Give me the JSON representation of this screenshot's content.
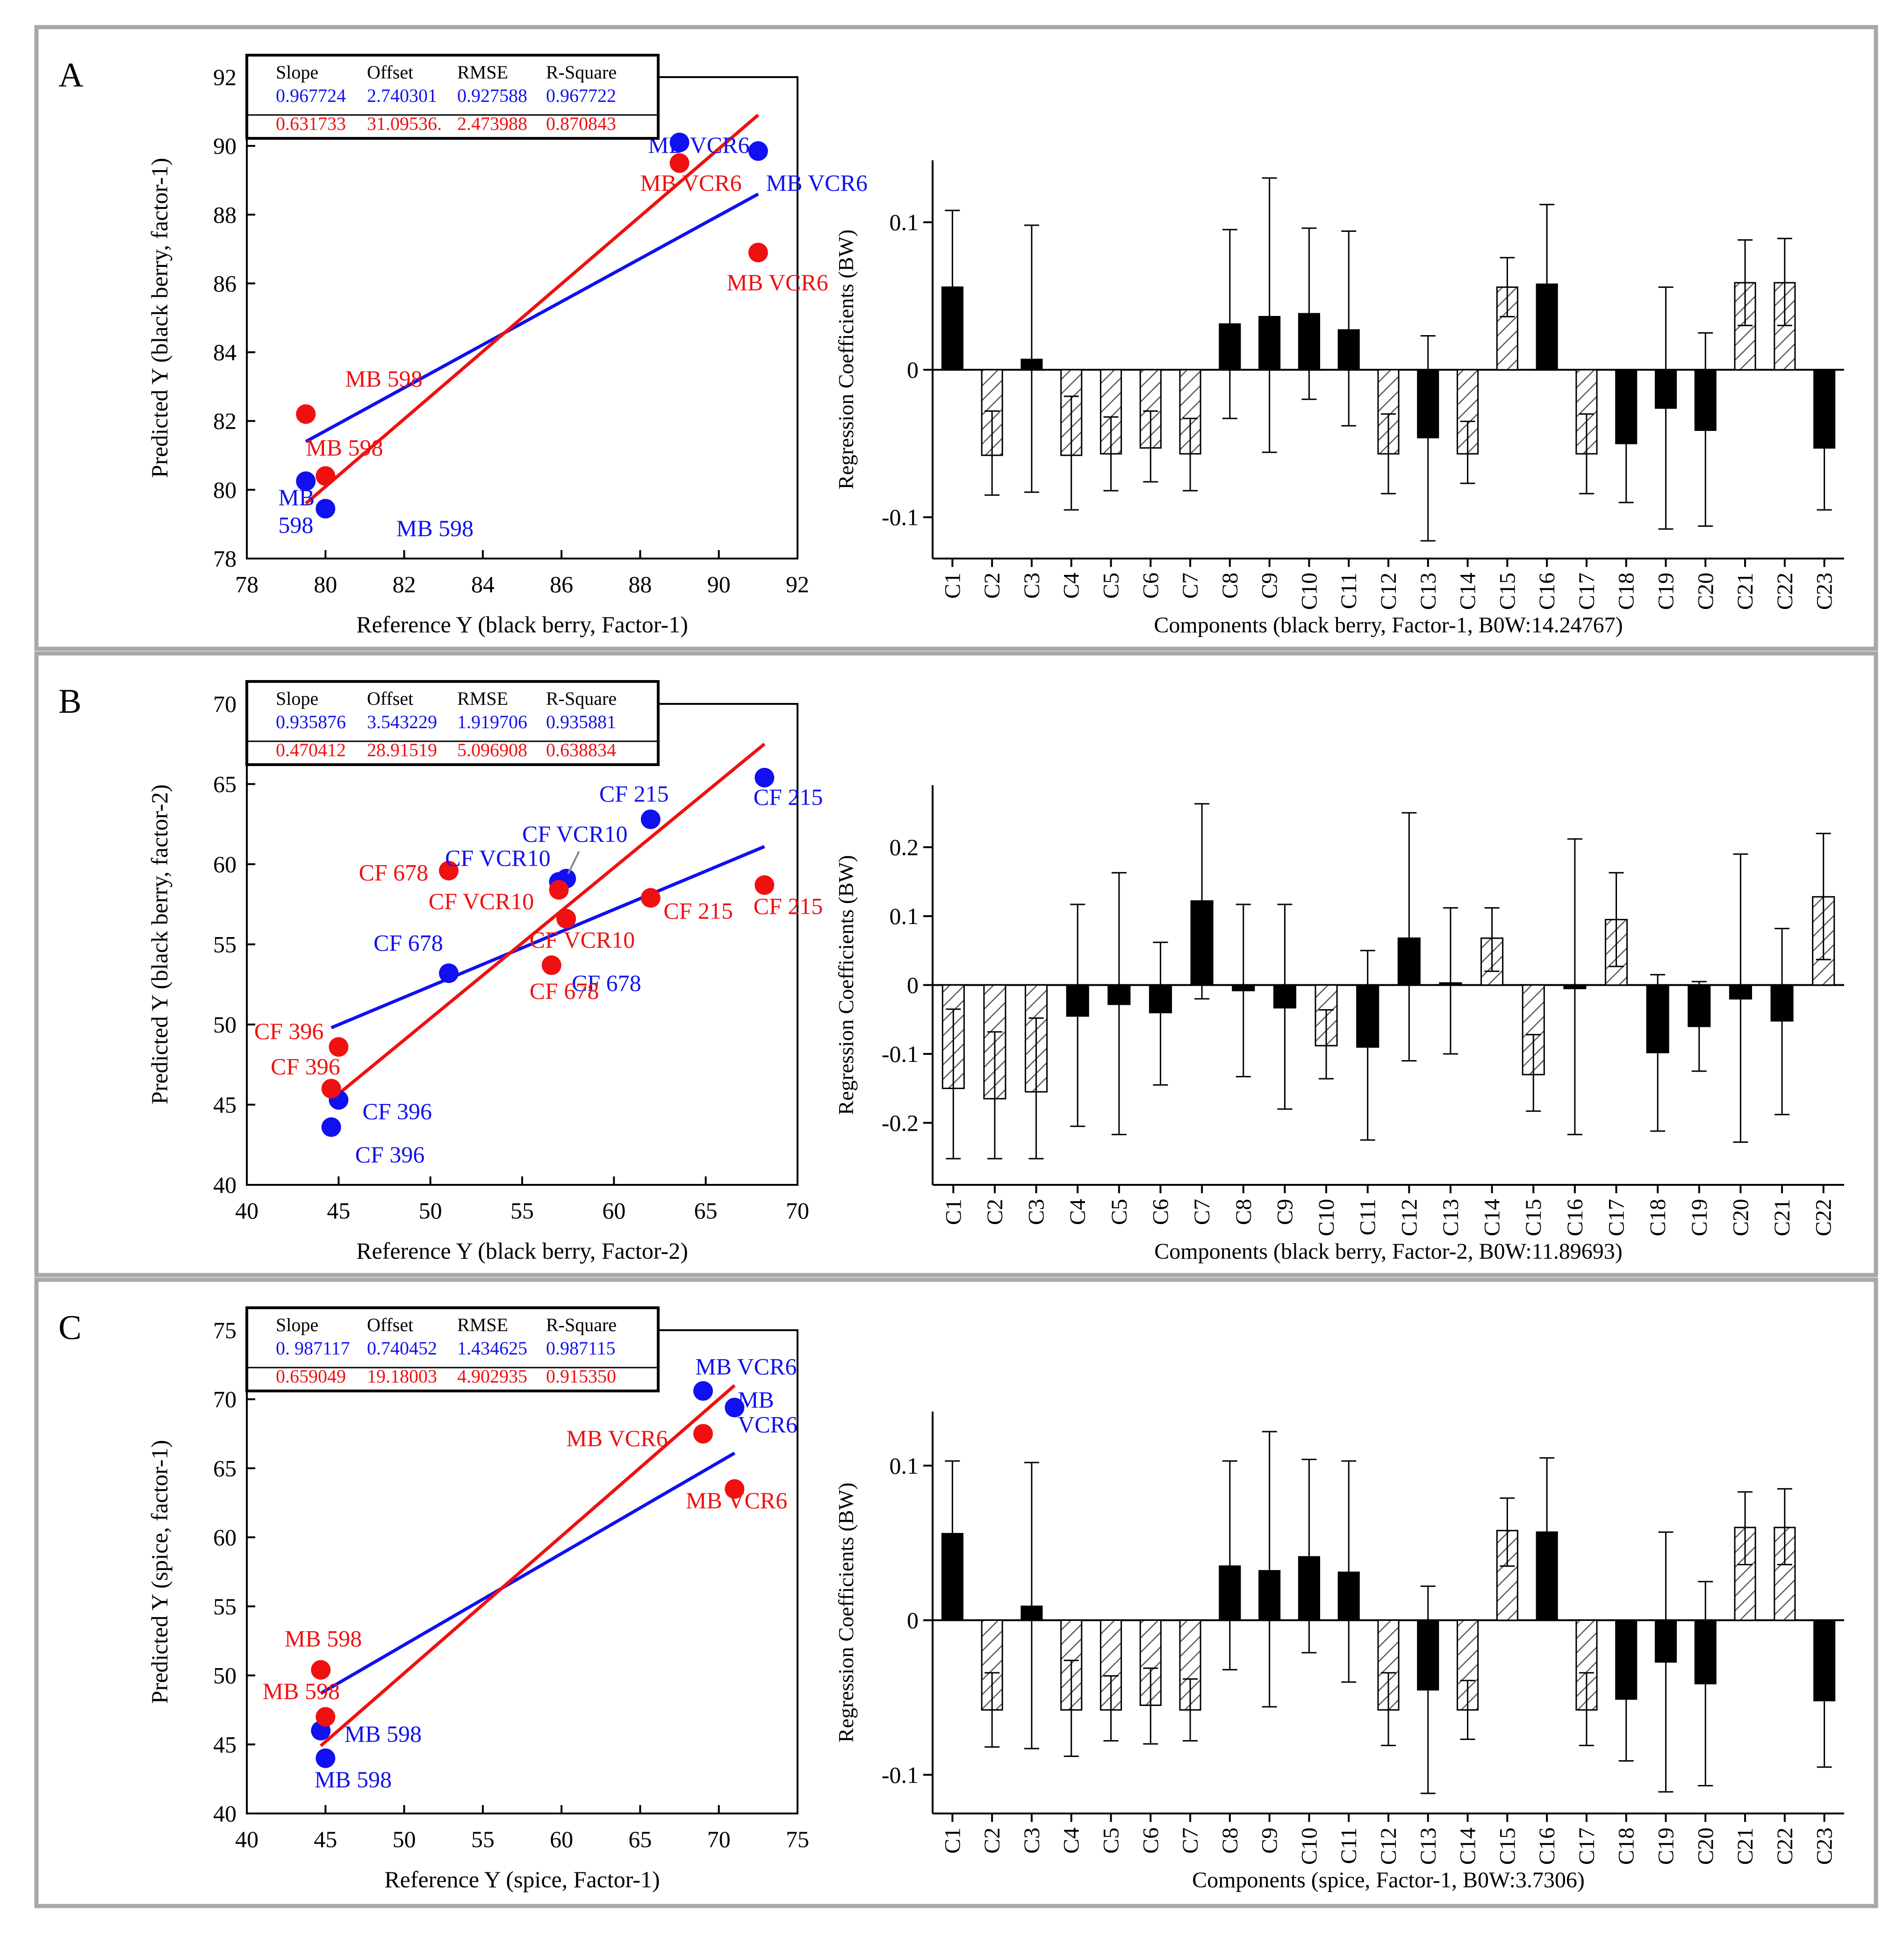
{
  "colors": {
    "blue": "#1010f0",
    "red": "#f01010",
    "frame": "#a8a8a8",
    "axis": "#000000"
  },
  "stats_header": [
    "Slope",
    "Offset",
    "RMSE",
    "R-Square"
  ],
  "chart_data": [
    {
      "panel": "A",
      "type": "scatter",
      "xlabel": "Reference Y (black berry, Factor-1)",
      "ylabel": "Predicted Y (black berry, factor-1)",
      "xlim": [
        78,
        92
      ],
      "ylim": [
        78,
        92
      ],
      "xticks": [
        78,
        80,
        82,
        84,
        86,
        88,
        90,
        92
      ],
      "yticks": [
        78,
        80,
        82,
        84,
        86,
        88,
        90,
        92
      ],
      "stats": {
        "blue": [
          "0.967724",
          "2.740301",
          "0.927588",
          "0.967722"
        ],
        "red": [
          "0.631733",
          "31.09536.",
          "2.473988",
          "0.870843"
        ]
      },
      "series": [
        {
          "name": "blue",
          "points": [
            [
              79.5,
              80.25
            ],
            [
              80.0,
              79.45
            ],
            [
              89.0,
              90.1
            ],
            [
              91.0,
              89.85
            ]
          ],
          "fit": [
            [
              79.5,
              81.4
            ],
            [
              91.0,
              88.6
            ]
          ]
        },
        {
          "name": "red",
          "points": [
            [
              79.5,
              82.2
            ],
            [
              80.0,
              80.4
            ],
            [
              89.0,
              89.5
            ],
            [
              91.0,
              86.9
            ]
          ],
          "fit": [
            [
              79.5,
              79.6
            ],
            [
              91.0,
              90.9
            ]
          ]
        }
      ],
      "labels": [
        {
          "text": "MB VCR6",
          "color": "blue",
          "x": 88.2,
          "y": 89.8
        },
        {
          "text": "MB VCR6",
          "color": "blue",
          "x": 91.2,
          "y": 88.7
        },
        {
          "text": "MB VCR6",
          "color": "red",
          "x": 88.0,
          "y": 88.7
        },
        {
          "text": "MB VCR6",
          "color": "red",
          "x": 90.2,
          "y": 85.8
        },
        {
          "text": "MB 598",
          "color": "red",
          "x": 80.5,
          "y": 83.0
        },
        {
          "text": "MB 598",
          "color": "red",
          "x": 79.5,
          "y": 81.0
        },
        {
          "text": "MB",
          "color": "blue",
          "x": 78.8,
          "y": 79.55
        },
        {
          "text": "598",
          "color": "blue",
          "x": 78.8,
          "y": 78.75
        },
        {
          "text": "MB 598",
          "color": "blue",
          "x": 81.8,
          "y": 78.65
        }
      ]
    },
    {
      "panel": "A",
      "type": "bar",
      "xlabel": "Components (black berry, Factor-1, B0W:14.24767)",
      "ylabel": "Regression Coefficients (BW)",
      "ylim": [
        -0.128,
        0.142
      ],
      "yticks": [
        -0.1,
        0,
        0.1
      ],
      "categories": [
        "C1",
        "C2",
        "C3",
        "C4",
        "C5",
        "C6",
        "C7",
        "C8",
        "C9",
        "C10",
        "C11",
        "C12",
        "C13",
        "C14",
        "C15",
        "C16",
        "C17",
        "C18",
        "C19",
        "C20",
        "C21",
        "C22",
        "C23"
      ],
      "values": [
        0.056,
        -0.058,
        0.007,
        -0.058,
        -0.057,
        -0.053,
        -0.057,
        0.031,
        0.036,
        0.038,
        0.027,
        -0.057,
        -0.046,
        -0.057,
        0.056,
        0.058,
        -0.057,
        -0.05,
        -0.026,
        -0.041,
        0.059,
        0.059,
        -0.053
      ],
      "err_hi": [
        0.108,
        -0.028,
        0.098,
        -0.018,
        -0.032,
        -0.028,
        -0.033,
        0.095,
        0.13,
        0.096,
        0.094,
        -0.03,
        0.023,
        -0.035,
        0.076,
        0.112,
        -0.03,
        -0.01,
        0.056,
        0.025,
        0.088,
        0.089,
        -0.008
      ],
      "err_lo": [
        0.003,
        -0.085,
        -0.083,
        -0.095,
        -0.082,
        -0.076,
        -0.082,
        -0.033,
        -0.056,
        -0.02,
        -0.038,
        -0.084,
        -0.116,
        -0.077,
        0.036,
        0.003,
        -0.084,
        -0.09,
        -0.108,
        -0.106,
        0.03,
        0.03,
        -0.095
      ],
      "style": [
        "solid",
        "hatch",
        "solid",
        "hatch",
        "hatch",
        "hatch",
        "hatch",
        "solid",
        "solid",
        "solid",
        "solid",
        "hatch",
        "solid",
        "hatch",
        "hatch",
        "solid",
        "hatch",
        "solid",
        "solid",
        "solid",
        "hatch",
        "hatch",
        "solid"
      ]
    },
    {
      "panel": "B",
      "type": "scatter",
      "xlabel": "Reference Y (black berry, Factor-2)",
      "ylabel": "Predicted Y (black berry, factor-2)",
      "xlim": [
        40,
        70
      ],
      "ylim": [
        40,
        70
      ],
      "xticks": [
        40,
        45,
        50,
        55,
        60,
        65,
        70
      ],
      "yticks": [
        40,
        45,
        50,
        55,
        60,
        65,
        70
      ],
      "stats": {
        "blue": [
          "0.935876",
          "3.543229",
          "1.919706",
          "0.935881"
        ],
        "red": [
          "0.470412",
          "28.91519",
          "5.096908",
          "0.638834"
        ]
      },
      "series": [
        {
          "name": "blue",
          "points": [
            [
              44.6,
              43.6
            ],
            [
              45.0,
              45.3
            ],
            [
              51.0,
              53.2
            ],
            [
              57.0,
              58.9
            ],
            [
              57.4,
              59.1
            ],
            [
              62.0,
              62.8
            ],
            [
              68.2,
              65.4
            ]
          ],
          "fit": [
            [
              44.6,
              49.8
            ],
            [
              68.2,
              61.1
            ]
          ]
        },
        {
          "name": "red",
          "points": [
            [
              44.6,
              46.0
            ],
            [
              45.0,
              48.6
            ],
            [
              51.0,
              59.6
            ],
            [
              56.6,
              53.7
            ],
            [
              57.0,
              58.4
            ],
            [
              57.4,
              56.6
            ],
            [
              62.0,
              57.9
            ],
            [
              68.2,
              58.7
            ]
          ],
          "fit": [
            [
              44.6,
              45.3
            ],
            [
              68.2,
              67.5
            ]
          ]
        }
      ],
      "labels": [
        {
          "text": "CF 215",
          "color": "blue",
          "x": 59.2,
          "y": 63.9
        },
        {
          "text": "CF 215",
          "color": "blue",
          "x": 67.6,
          "y": 63.7
        },
        {
          "text": "CF VCR10",
          "color": "blue",
          "x": 55.0,
          "y": 61.4
        },
        {
          "text": "CF VCR10",
          "color": "blue",
          "x": 50.8,
          "y": 59.9
        },
        {
          "text": "CF 678",
          "color": "red",
          "x": 46.1,
          "y": 59.0
        },
        {
          "text": "CF VCR10",
          "color": "red",
          "x": 49.9,
          "y": 57.2
        },
        {
          "text": "CF VCR10",
          "color": "red",
          "x": 55.4,
          "y": 54.8
        },
        {
          "text": "CF 215",
          "color": "red",
          "x": 62.7,
          "y": 56.6
        },
        {
          "text": "CF 215",
          "color": "red",
          "x": 67.6,
          "y": 56.9
        },
        {
          "text": "CF 678",
          "color": "blue",
          "x": 46.9,
          "y": 54.6
        },
        {
          "text": "CF 678",
          "color": "blue",
          "x": 57.7,
          "y": 52.1
        },
        {
          "text": "CF 678",
          "color": "red",
          "x": 55.4,
          "y": 51.6
        },
        {
          "text": "CF 396",
          "color": "red",
          "x": 40.4,
          "y": 49.1
        },
        {
          "text": "CF 396",
          "color": "red",
          "x": 41.3,
          "y": 46.9
        },
        {
          "text": "CF 396",
          "color": "blue",
          "x": 46.3,
          "y": 44.1
        },
        {
          "text": "CF 396",
          "color": "blue",
          "x": 45.9,
          "y": 41.4
        }
      ]
    },
    {
      "panel": "B",
      "type": "bar",
      "xlabel": "Components (black berry, Factor-2, B0W:11.89693)",
      "ylabel": "Regression Coefficients (BW)",
      "ylim": [
        -0.29,
        0.29
      ],
      "yticks": [
        -0.2,
        -0.1,
        0,
        0.1,
        0.2
      ],
      "categories": [
        "C1",
        "C2",
        "C3",
        "C4",
        "C5",
        "C6",
        "C7",
        "C8",
        "C9",
        "C10",
        "C11",
        "C12",
        "C13",
        "C14",
        "C15",
        "C16",
        "C17",
        "C18",
        "C19",
        "C20",
        "C21",
        "C22"
      ],
      "values": [
        -0.15,
        -0.165,
        -0.155,
        -0.045,
        -0.028,
        -0.04,
        0.122,
        -0.008,
        -0.033,
        -0.088,
        -0.09,
        0.068,
        0.003,
        0.068,
        -0.13,
        -0.005,
        0.095,
        -0.098,
        -0.06,
        -0.02,
        -0.052,
        0.128
      ],
      "err_hi": [
        -0.035,
        -0.068,
        -0.048,
        0.117,
        0.163,
        0.062,
        0.263,
        0.117,
        0.117,
        -0.036,
        0.05,
        0.25,
        0.112,
        0.112,
        -0.072,
        0.212,
        0.163,
        0.015,
        0.005,
        0.19,
        0.082,
        0.22
      ],
      "err_lo": [
        -0.252,
        -0.252,
        -0.252,
        -0.205,
        -0.217,
        -0.145,
        -0.02,
        -0.133,
        -0.18,
        -0.136,
        -0.225,
        -0.11,
        -0.1,
        0.02,
        -0.183,
        -0.217,
        0.027,
        -0.212,
        -0.125,
        -0.228,
        -0.188,
        0.037
      ],
      "style": [
        "hatch",
        "hatch",
        "hatch",
        "solid",
        "solid",
        "solid",
        "solid",
        "solid",
        "solid",
        "hatch",
        "solid",
        "solid",
        "solid",
        "hatch",
        "hatch",
        "solid",
        "hatch",
        "solid",
        "solid",
        "solid",
        "solid",
        "hatch"
      ]
    },
    {
      "panel": "C",
      "type": "scatter",
      "xlabel": "Reference Y (spice, Factor-1)",
      "ylabel": "Predicted Y (spice, factor-1)",
      "xlim": [
        40,
        75
      ],
      "ylim": [
        40,
        75
      ],
      "xticks": [
        40,
        45,
        50,
        55,
        60,
        65,
        70,
        75
      ],
      "yticks": [
        40,
        45,
        50,
        55,
        60,
        65,
        70,
        75
      ],
      "stats": {
        "blue": [
          "0. 987117",
          "0.740452",
          "1.434625",
          "0.987115"
        ],
        "red": [
          "0.659049",
          "19.18003",
          "4.902935",
          "0.915350"
        ]
      },
      "series": [
        {
          "name": "blue",
          "points": [
            [
              44.7,
              46.0
            ],
            [
              45.0,
              44.0
            ],
            [
              69.0,
              70.6
            ],
            [
              71.0,
              69.4
            ]
          ],
          "fit": [
            [
              44.7,
              48.7
            ],
            [
              71.0,
              66.1
            ]
          ]
        },
        {
          "name": "red",
          "points": [
            [
              44.7,
              50.4
            ],
            [
              45.0,
              47.0
            ],
            [
              69.0,
              67.5
            ],
            [
              71.0,
              63.5
            ]
          ],
          "fit": [
            [
              44.7,
              44.9
            ],
            [
              71.0,
              71.0
            ]
          ]
        }
      ],
      "labels": [
        {
          "text": "MB VCR6",
          "color": "blue",
          "x": 68.5,
          "y": 71.8
        },
        {
          "text": "MB",
          "color": "blue",
          "x": 71.2,
          "y": 69.4
        },
        {
          "text": "VCR6",
          "color": "blue",
          "x": 71.2,
          "y": 67.6
        },
        {
          "text": "MB VCR6",
          "color": "red",
          "x": 60.3,
          "y": 66.6
        },
        {
          "text": "MB VCR6",
          "color": "red",
          "x": 67.9,
          "y": 62.1
        },
        {
          "text": "MB 598",
          "color": "red",
          "x": 42.4,
          "y": 52.1
        },
        {
          "text": "MB 598",
          "color": "red",
          "x": 41.0,
          "y": 48.3
        },
        {
          "text": "MB 598",
          "color": "blue",
          "x": 46.2,
          "y": 45.2
        },
        {
          "text": "MB 598",
          "color": "blue",
          "x": 44.3,
          "y": 41.9
        }
      ]
    },
    {
      "panel": "C",
      "type": "bar",
      "xlabel": "Components (spice, Factor-1, B0W:3.7306)",
      "ylabel": "Regression Coefficients (BW)",
      "ylim": [
        -0.125,
        0.135
      ],
      "yticks": [
        -0.1,
        0,
        0.1
      ],
      "categories": [
        "C1",
        "C2",
        "C3",
        "C4",
        "C5",
        "C6",
        "C7",
        "C8",
        "C9",
        "C10",
        "C11",
        "C12",
        "C13",
        "C14",
        "C15",
        "C16",
        "C17",
        "C18",
        "C19",
        "C20",
        "C21",
        "C22",
        "C23"
      ],
      "values": [
        0.056,
        -0.058,
        0.009,
        -0.058,
        -0.058,
        -0.055,
        -0.058,
        0.035,
        0.032,
        0.041,
        0.031,
        -0.058,
        -0.045,
        -0.058,
        0.058,
        0.057,
        -0.058,
        -0.051,
        -0.027,
        -0.041,
        0.06,
        0.06,
        -0.052
      ],
      "err_hi": [
        0.103,
        -0.034,
        0.102,
        -0.026,
        -0.036,
        -0.031,
        -0.038,
        0.103,
        0.122,
        0.104,
        0.103,
        -0.034,
        0.022,
        -0.039,
        0.079,
        0.105,
        -0.034,
        -0.011,
        0.057,
        0.025,
        0.083,
        0.085,
        -0.008
      ],
      "err_lo": [
        0.01,
        -0.082,
        -0.083,
        -0.088,
        -0.078,
        -0.08,
        -0.078,
        -0.032,
        -0.056,
        -0.021,
        -0.04,
        -0.081,
        -0.112,
        -0.077,
        0.035,
        0.009,
        -0.081,
        -0.091,
        -0.111,
        -0.107,
        0.036,
        0.036,
        -0.095
      ],
      "style": [
        "solid",
        "hatch",
        "solid",
        "hatch",
        "hatch",
        "hatch",
        "hatch",
        "solid",
        "solid",
        "solid",
        "solid",
        "hatch",
        "solid",
        "hatch",
        "hatch",
        "solid",
        "hatch",
        "solid",
        "solid",
        "solid",
        "hatch",
        "hatch",
        "solid"
      ]
    }
  ]
}
